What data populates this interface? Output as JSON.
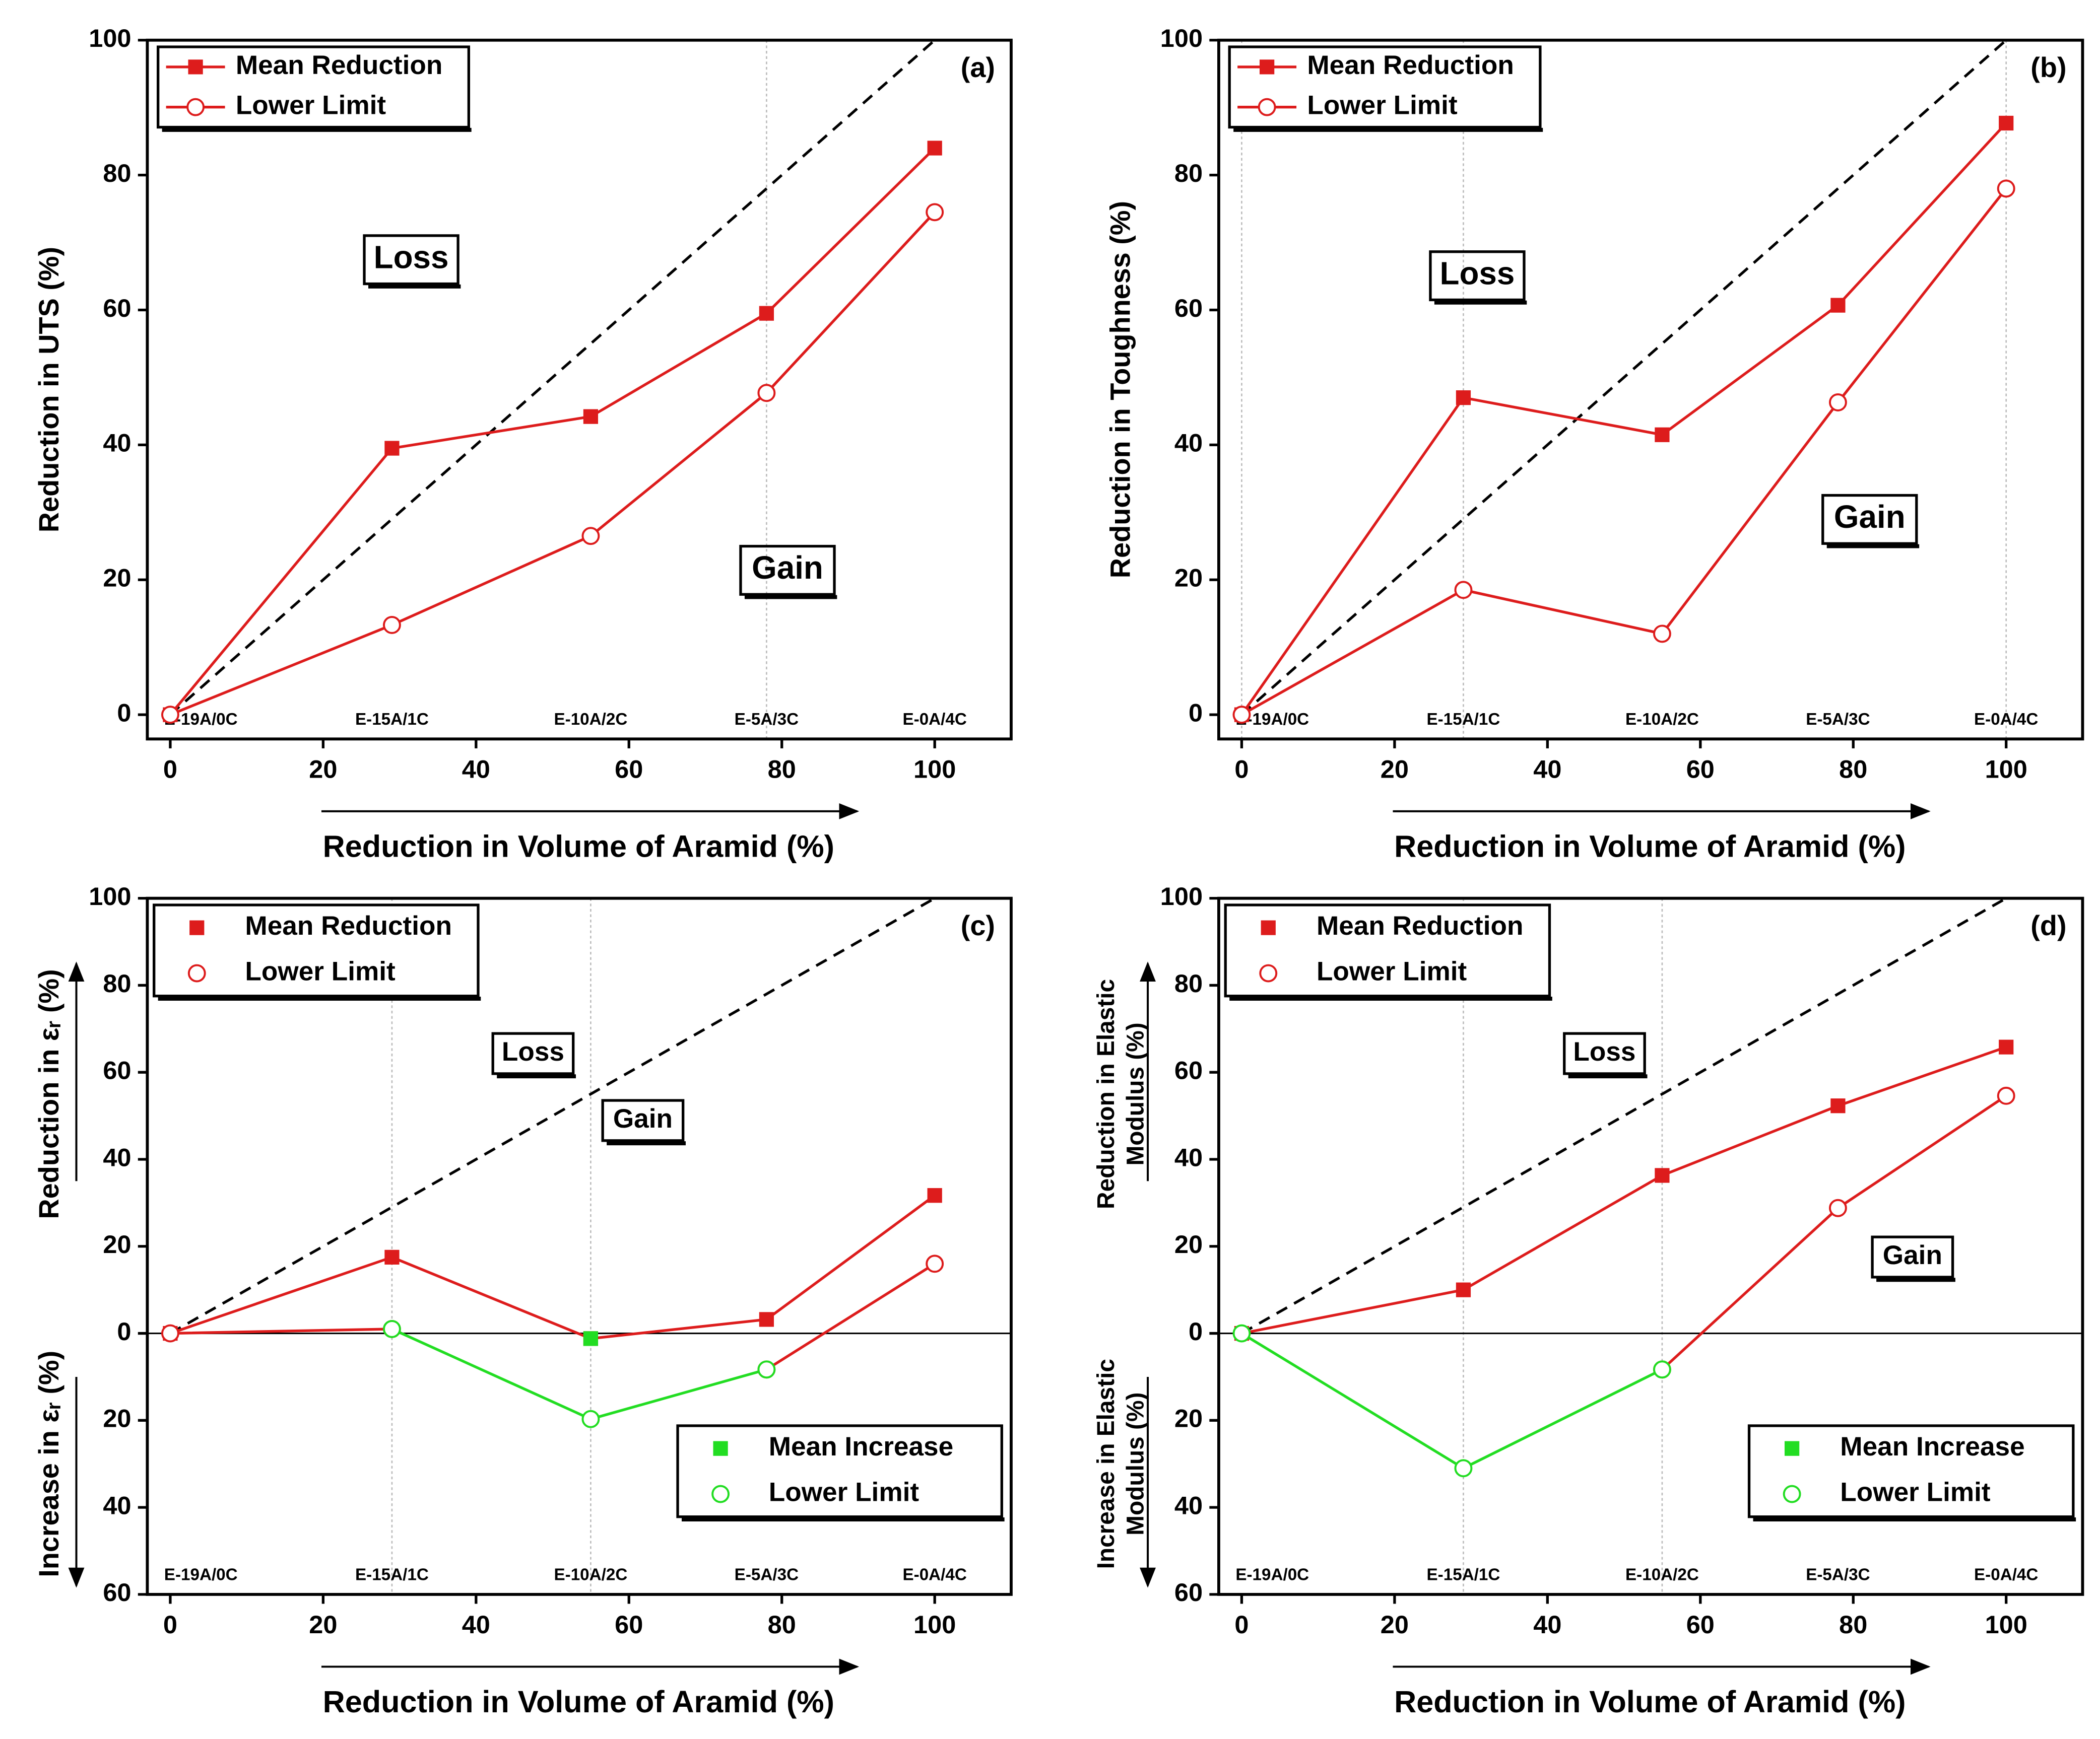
{
  "chart_data": [
    {
      "type": "line",
      "label": "(a)",
      "ylabel": [
        "Reduction in UTS (%)"
      ],
      "xlabel": "Reduction in Volume of Aramid (%)",
      "x": [
        0,
        29,
        55,
        78,
        100
      ],
      "sample_labels": [
        "E-19A/0C",
        "E-15A/1C",
        "E-10A/2C",
        "E-5A/3C",
        "E-0A/4C"
      ],
      "xlim": [
        -3,
        110
      ],
      "xticks": [
        0,
        20,
        40,
        60,
        80,
        100
      ],
      "ylim": [
        -3.6,
        100
      ],
      "yticks": [
        0,
        20,
        40,
        60,
        80,
        100
      ],
      "vlines": [
        78
      ],
      "reference_line": {
        "x": [
          0,
          100
        ],
        "y": [
          0,
          100
        ]
      },
      "zero_line": false,
      "legend_lines": true,
      "annotations": [
        "Loss",
        "Gain"
      ],
      "series": [
        {
          "name": "Mean Reduction",
          "color": "#dd1c1c",
          "marker": "square",
          "legend": "upper left",
          "values": [
            0,
            39.5,
            44.2,
            59.5,
            84
          ]
        },
        {
          "name": "Lower Limit",
          "color": "#dd1c1c",
          "marker": "circle",
          "legend": "upper left",
          "values": [
            0,
            13.3,
            26.5,
            47.7,
            74.5
          ]
        }
      ]
    },
    {
      "type": "line",
      "label": "(b)",
      "ylabel": [
        "Reduction in Toughness (%)"
      ],
      "xlabel": "Reduction in Volume of Aramid (%)",
      "x": [
        0,
        29,
        55,
        78,
        100
      ],
      "sample_labels": [
        "E-19A/0C",
        "E-15A/1C",
        "E-10A/2C",
        "E-5A/3C",
        "E-0A/4C"
      ],
      "xlim": [
        -3,
        110
      ],
      "xticks": [
        0,
        20,
        40,
        60,
        80,
        100
      ],
      "ylim": [
        -3.6,
        100
      ],
      "yticks": [
        0,
        20,
        40,
        60,
        80,
        100
      ],
      "vlines": [
        0,
        29,
        100
      ],
      "reference_line": {
        "x": [
          0,
          100
        ],
        "y": [
          0,
          100
        ]
      },
      "zero_line": false,
      "legend_lines": true,
      "annotations": [
        "Loss",
        "Gain"
      ],
      "series": [
        {
          "name": "Mean Reduction",
          "color": "#dd1c1c",
          "marker": "square",
          "legend": "upper left",
          "values": [
            0,
            47,
            41.5,
            60.7,
            87.7
          ]
        },
        {
          "name": "Lower Limit",
          "color": "#dd1c1c",
          "marker": "circle",
          "legend": "upper left",
          "values": [
            0,
            18.5,
            12,
            46.3,
            78
          ]
        }
      ]
    },
    {
      "type": "line",
      "label": "(c)",
      "ylabel": [
        "Reduction in εᵣ (%)"
      ],
      "ylabel_lower": [
        "Increase in εᵣ (%)"
      ],
      "xlabel": "Reduction in Volume of Aramid (%)",
      "x": [
        0,
        29,
        55,
        78,
        100
      ],
      "sample_labels": [
        "E-19A/0C",
        "E-15A/1C",
        "E-10A/2C",
        "E-5A/3C",
        "E-0A/4C"
      ],
      "xlim": [
        -3,
        110
      ],
      "xticks": [
        0,
        20,
        40,
        60,
        80,
        100
      ],
      "ylim": [
        -60,
        100
      ],
      "yticks": [
        {
          "value": -60,
          "label": "60"
        },
        {
          "value": -40,
          "label": "40"
        },
        {
          "value": -20,
          "label": "20"
        },
        0,
        20,
        40,
        60,
        80,
        100
      ],
      "vlines": [
        29,
        55
      ],
      "reference_line": {
        "x": [
          0,
          100
        ],
        "y": [
          0,
          100
        ]
      },
      "zero_line": true,
      "legend_lines": false,
      "annotations": [
        "Loss",
        "Gain"
      ],
      "series": [
        {
          "name": "Mean Reduction",
          "color": "#dd1c1c",
          "marker": "square",
          "legend": "upper left",
          "values": [
            0,
            17.5,
            -1.2,
            3.2,
            31.7
          ]
        },
        {
          "name": "Lower Limit",
          "color": "#dd1c1c",
          "marker": "circle",
          "legend": "upper left",
          "values": [
            0,
            1,
            null,
            -8.3,
            16
          ]
        },
        {
          "name": "Mean Increase",
          "color": "#22dd22",
          "marker": "square",
          "legend": "lower right",
          "values": [
            null,
            null,
            -1.2,
            null,
            null
          ]
        },
        {
          "name": "Lower Limit",
          "color": "#22dd22",
          "marker": "circle",
          "legend": "lower right",
          "values": [
            null,
            1,
            -19.7,
            -8.3,
            null
          ]
        }
      ]
    },
    {
      "type": "line",
      "label": "(d)",
      "ylabel": [
        "Reduction in Elastic",
        "Modulus (%)"
      ],
      "ylabel_lower": [
        "Increase in Elastic",
        "Modulus (%)"
      ],
      "xlabel": "Reduction in Volume of Aramid (%)",
      "x": [
        0,
        29,
        55,
        78,
        100
      ],
      "sample_labels": [
        "E-19A/0C",
        "E-15A/1C",
        "E-10A/2C",
        "E-5A/3C",
        "E-0A/4C"
      ],
      "xlim": [
        -3,
        110
      ],
      "xticks": [
        0,
        20,
        40,
        60,
        80,
        100
      ],
      "ylim": [
        -60,
        100
      ],
      "yticks": [
        {
          "value": -60,
          "label": "60"
        },
        {
          "value": -40,
          "label": "40"
        },
        {
          "value": -20,
          "label": "20"
        },
        0,
        20,
        40,
        60,
        80,
        100
      ],
      "vlines": [
        29,
        55
      ],
      "reference_line": {
        "x": [
          0,
          100
        ],
        "y": [
          0,
          100
        ]
      },
      "zero_line": true,
      "legend_lines": false,
      "annotations": [
        "Loss",
        "Gain"
      ],
      "series": [
        {
          "name": "Mean Reduction",
          "color": "#dd1c1c",
          "marker": "square",
          "legend": "upper left",
          "values": [
            0,
            10,
            36.3,
            52.3,
            65.8
          ]
        },
        {
          "name": "Lower Limit",
          "color": "#dd1c1c",
          "marker": "circle",
          "legend": "upper left",
          "values": [
            null,
            null,
            -8.3,
            28.8,
            54.6
          ]
        },
        {
          "name": "Mean Increase",
          "color": "#22dd22",
          "marker": "square",
          "legend": "lower right",
          "values": [
            null,
            null,
            null,
            null,
            null
          ]
        },
        {
          "name": "Lower Limit",
          "color": "#22dd22",
          "marker": "circle",
          "legend": "lower right",
          "values": [
            0,
            -31,
            -8.3,
            null,
            null
          ]
        }
      ]
    }
  ]
}
